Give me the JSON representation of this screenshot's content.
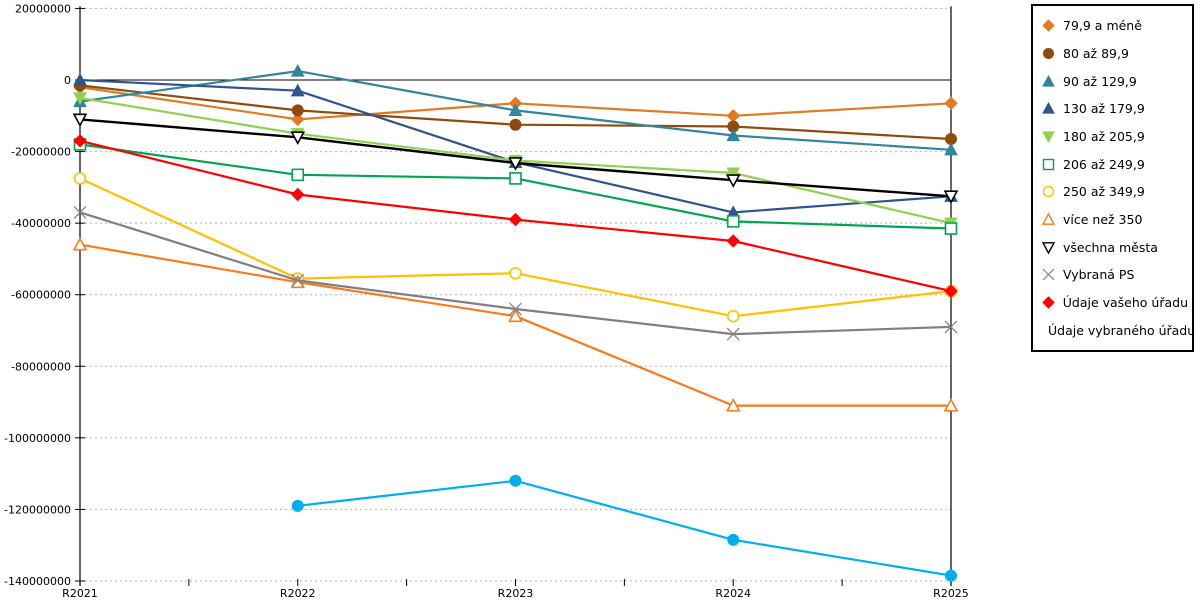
{
  "chart_data": {
    "type": "line",
    "title": "",
    "xlabel": "",
    "ylabel": "",
    "grid": "horizontal-dashed",
    "legend_position": "right-box",
    "x_categories": [
      "R2021",
      "R2022",
      "R2023",
      "R2024",
      "R2025"
    ],
    "y_axis": {
      "min": -140000000,
      "max": 20000000,
      "tick_step": 20000000,
      "tick_labels": [
        "20000000",
        "0",
        "-20000000",
        "-40000000",
        "-60000000",
        "-80000000",
        "-100000000",
        "-120000000",
        "-140000000"
      ]
    },
    "series": [
      {
        "name": "79,9 a méně",
        "marker": "diamond",
        "fill": "solid",
        "color": "#E07B21",
        "values": [
          -2000000,
          -11000000,
          -6500000,
          -10000000,
          -6500000
        ]
      },
      {
        "name": "80 až 89,9",
        "marker": "circle",
        "fill": "solid",
        "color": "#8F4B0E",
        "values": [
          -1500000,
          -8500000,
          -12500000,
          -13000000,
          -16500000
        ]
      },
      {
        "name": "90 až 129,9",
        "marker": "triangle-up",
        "fill": "solid",
        "color": "#31859C",
        "values": [
          -6000000,
          2500000,
          -8500000,
          -15500000,
          -19500000
        ]
      },
      {
        "name": "130 až 179,9",
        "marker": "triangle-up",
        "fill": "solid",
        "color": "#31538F",
        "values": [
          0,
          -3000000,
          -23000000,
          -37000000,
          -32500000
        ]
      },
      {
        "name": "180 až 205,9",
        "marker": "triangle-down",
        "fill": "solid",
        "color": "#92D050",
        "values": [
          -5000000,
          -15000000,
          -22500000,
          -26000000,
          -40000000
        ]
      },
      {
        "name": "206 až 249,9",
        "marker": "square",
        "fill": "open",
        "color": "#00A550",
        "values": [
          -18000000,
          -26500000,
          -27500000,
          -39500000,
          -41500000
        ]
      },
      {
        "name": "250 až 349,9",
        "marker": "circle",
        "fill": "open",
        "color": "#FFC000",
        "values": [
          -27500000,
          -55500000,
          -54000000,
          -66000000,
          -59000000
        ]
      },
      {
        "name": "více než 350",
        "marker": "triangle-up",
        "fill": "open",
        "color": "#F97A1C",
        "values": [
          -46000000,
          -56500000,
          -66000000,
          -91000000,
          -91000000
        ]
      },
      {
        "name": "všechna města",
        "marker": "triangle-down",
        "fill": "open",
        "color": "#000000",
        "values": [
          -11000000,
          -16000000,
          -23200000,
          -28000000,
          -32500000
        ]
      },
      {
        "name": "Vybraná PS",
        "marker": "x",
        "fill": "line",
        "color": "#808080",
        "values": [
          -37000000,
          -56000000,
          -64000000,
          -71000000,
          -69000000
        ]
      },
      {
        "name": "Údaje vašeho úřadu",
        "marker": "diamond",
        "fill": "solid",
        "color": "#FE0000",
        "values": [
          -17000000,
          -32000000,
          -39000000,
          -45000000,
          -59000000
        ]
      },
      {
        "name": "Údaje vybraného úřadu",
        "marker": "circle",
        "fill": "solid",
        "color": "#00AEEF",
        "values": [
          null,
          -119000000,
          -112000000,
          -128500000,
          -138500000
        ]
      }
    ]
  }
}
